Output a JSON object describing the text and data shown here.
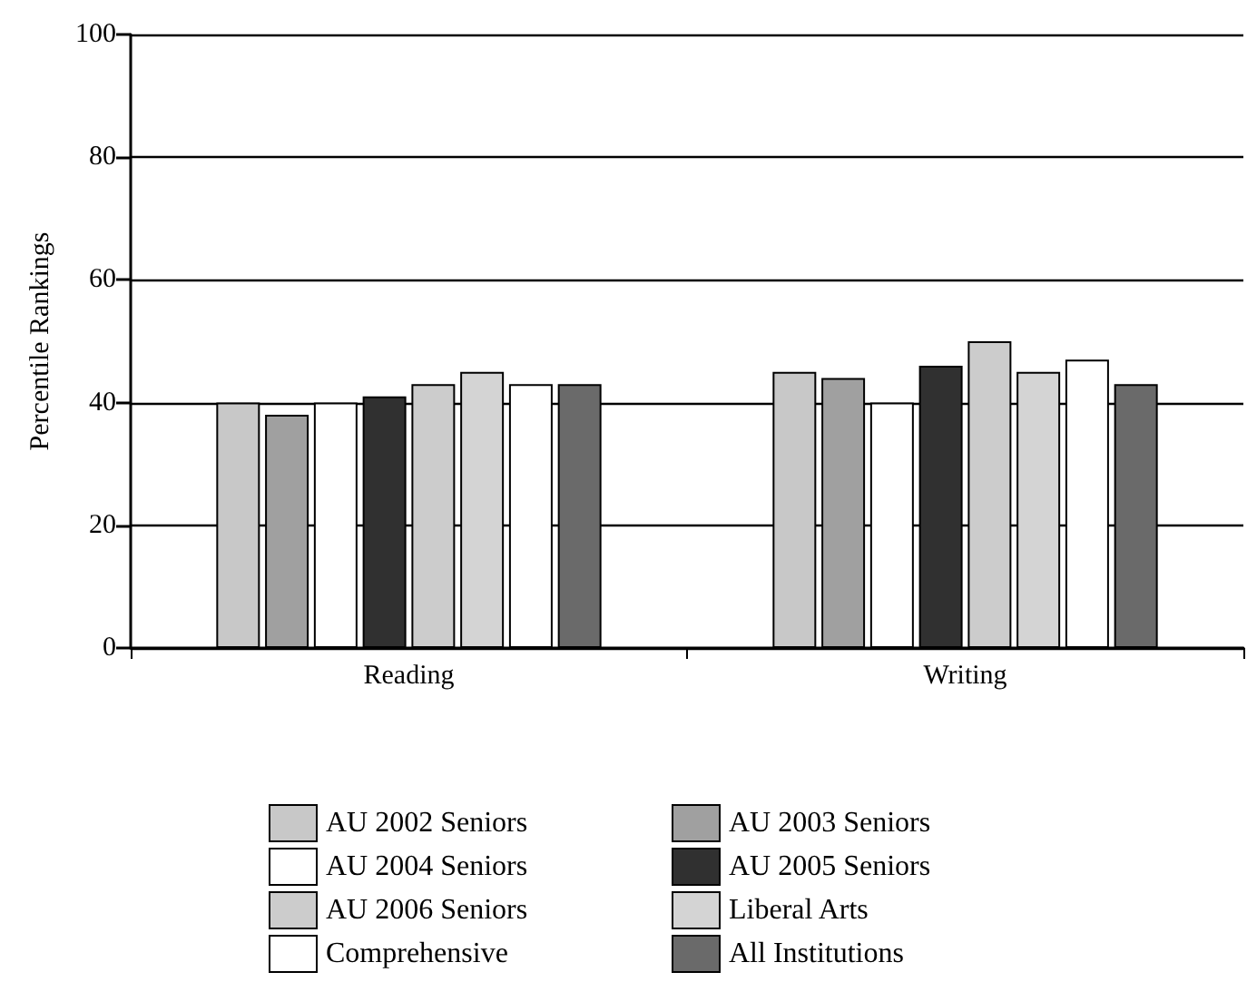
{
  "chart_data": {
    "type": "bar",
    "ylabel": "Percentile Rankings",
    "categories": [
      "Reading",
      "Writing"
    ],
    "series": [
      {
        "name": "AU 2002 Seniors",
        "color": "#c8c8c8",
        "values": [
          40,
          45
        ]
      },
      {
        "name": "AU 2003 Seniors",
        "color": "#a0a0a0",
        "values": [
          38,
          44
        ]
      },
      {
        "name": "AU 2004 Seniors",
        "color": "#ffffff",
        "values": [
          40,
          40
        ]
      },
      {
        "name": "AU 2005 Seniors",
        "color": "#303030",
        "values": [
          41,
          46
        ]
      },
      {
        "name": "AU 2006 Seniors",
        "color": "#cccccc",
        "values": [
          43,
          50
        ]
      },
      {
        "name": "Liberal Arts",
        "color": "#d4d4d4",
        "values": [
          45,
          45
        ]
      },
      {
        "name": "Comprehensive",
        "color": "#ffffff",
        "values": [
          43,
          47
        ]
      },
      {
        "name": "All Institutions",
        "color": "#6a6a6a",
        "values": [
          43,
          43
        ]
      }
    ],
    "ylim": [
      0,
      100
    ],
    "yticks": [
      0,
      20,
      40,
      60,
      80,
      100
    ],
    "grid": "y",
    "legend": "bottom"
  }
}
